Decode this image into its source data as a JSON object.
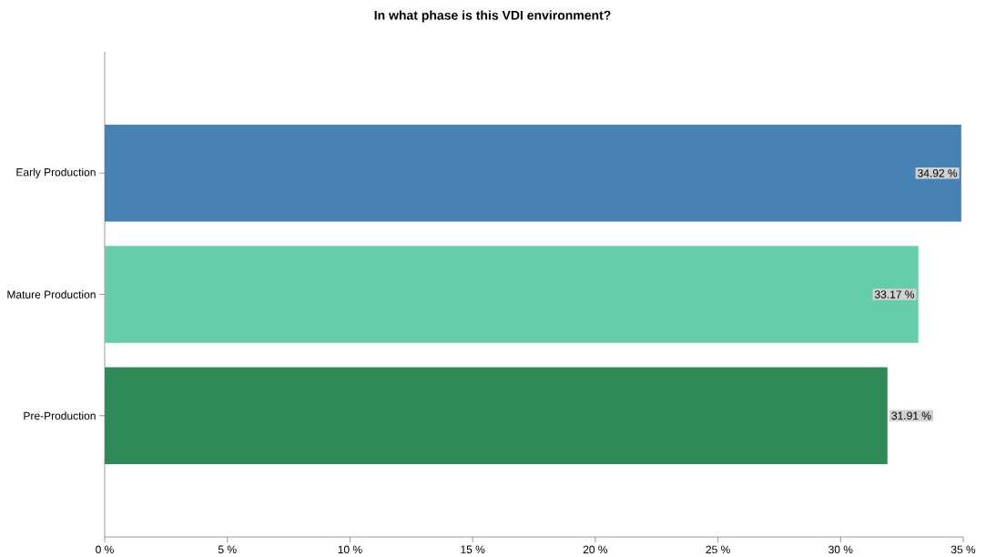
{
  "chart_data": {
    "type": "bar",
    "orientation": "horizontal",
    "title": "In what phase is this VDI environment?",
    "categories": [
      "Early Production",
      "Mature Production",
      "Pre-Production"
    ],
    "values": [
      34.92,
      33.17,
      31.91
    ],
    "colors": [
      "#4682b4",
      "#66cdaa",
      "#2e8b57"
    ],
    "value_labels": [
      "34.92 %",
      "33.17 %",
      "31.91 %"
    ],
    "xlim": [
      0,
      35
    ],
    "xticks": [
      {
        "value": 0,
        "label": "0 %"
      },
      {
        "value": 5,
        "label": "5 %"
      },
      {
        "value": 10,
        "label": "10 %"
      },
      {
        "value": 15,
        "label": "15 %"
      },
      {
        "value": 20,
        "label": "20 %"
      },
      {
        "value": 25,
        "label": "25 %"
      },
      {
        "value": 30,
        "label": "30 %"
      },
      {
        "value": 35,
        "label": "35 %"
      }
    ],
    "grid": false
  }
}
